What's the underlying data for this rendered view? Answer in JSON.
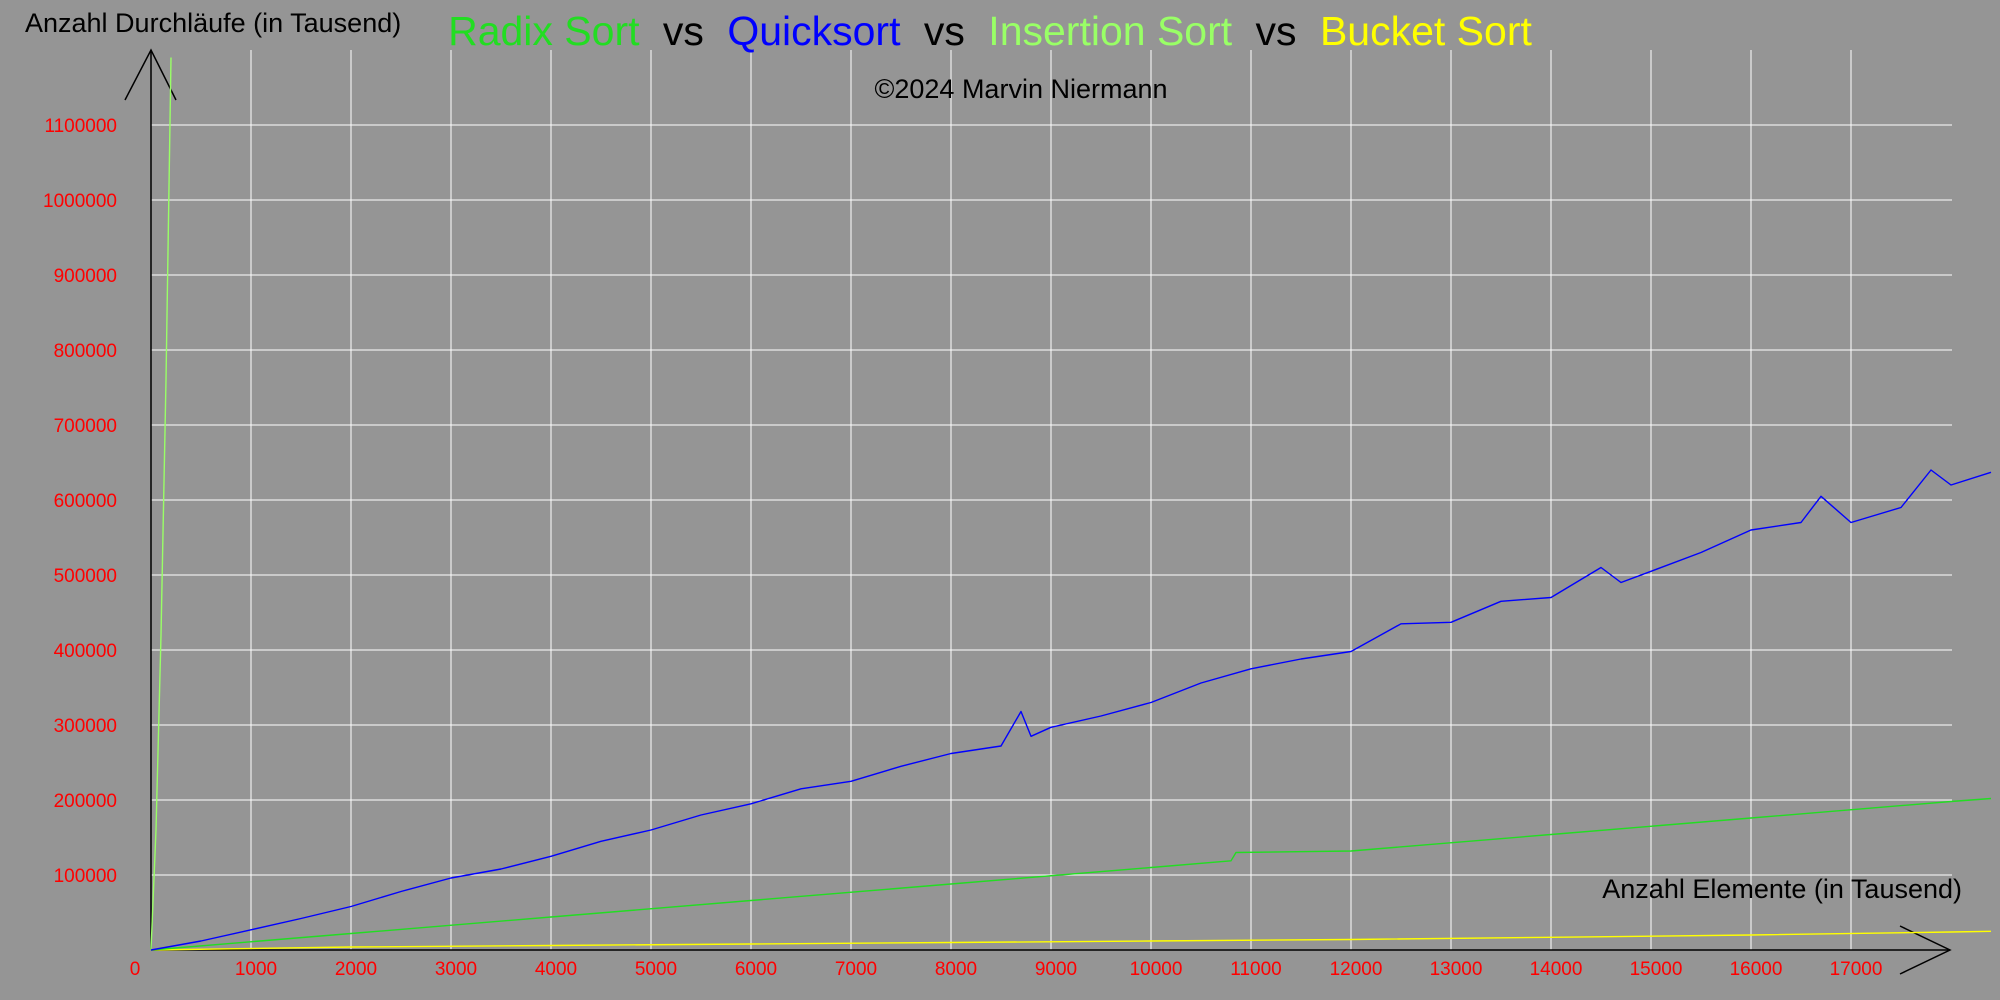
{
  "title_parts": [
    {
      "text": "Radix Sort",
      "color": "#22dd22"
    },
    {
      "text": "vs",
      "color": "#000000"
    },
    {
      "text": "Quicksort",
      "color": "#0000ff"
    },
    {
      "text": "vs",
      "color": "#000000"
    },
    {
      "text": "Insertion Sort",
      "color": "#99ff66"
    },
    {
      "text": "vs",
      "color": "#000000"
    },
    {
      "text": "Bucket Sort",
      "color": "#ffff00"
    }
  ],
  "copyright": "©2024 Marvin Niermann",
  "colors": {
    "background": "#959595",
    "grid": "#ffffff",
    "tick_labels": "#ff0000",
    "axes": "#000000"
  },
  "chart_data": {
    "type": "line",
    "xlabel": "Anzahl Elemente (in Tausend)",
    "ylabel": "Anzahl Durchläufe (in Tausend)",
    "xlim": [
      0,
      18000
    ],
    "ylim": [
      0,
      1100000
    ],
    "x_ticks": [
      "0",
      "1000",
      "2000",
      "3000",
      "4000",
      "5000",
      "6000",
      "7000",
      "8000",
      "9000",
      "10000",
      "11000",
      "12000",
      "13000",
      "14000",
      "15000",
      "16000",
      "17000"
    ],
    "y_ticks": [
      "100000",
      "200000",
      "300000",
      "400000",
      "500000",
      "600000",
      "700000",
      "800000",
      "900000",
      "1000000",
      "1100000"
    ],
    "grid": true,
    "series": [
      {
        "name": "Radix Sort",
        "color": "#22dd22",
        "x": [
          0,
          2000,
          4000,
          6000,
          8000,
          10000,
          10800,
          10850,
          12000,
          14000,
          16000,
          18000,
          18400
        ],
        "y": [
          0,
          22000,
          44000,
          66000,
          88000,
          110000,
          119000,
          130000,
          132000,
          154000,
          176000,
          198000,
          202000
        ]
      },
      {
        "name": "Quicksort",
        "color": "#0000ff",
        "x": [
          0,
          500,
          1000,
          1500,
          2000,
          2500,
          3000,
          3500,
          4000,
          4500,
          5000,
          5500,
          6000,
          6500,
          7000,
          7500,
          8000,
          8500,
          8700,
          8800,
          9000,
          9500,
          10000,
          10500,
          11000,
          11500,
          12000,
          12500,
          13000,
          13500,
          14000,
          14500,
          14700,
          15000,
          15500,
          16000,
          16500,
          16700,
          17000,
          17500,
          17800,
          18000,
          18400
        ],
        "y": [
          0,
          12000,
          27000,
          42000,
          58000,
          78000,
          96000,
          108000,
          125000,
          145000,
          160000,
          180000,
          195000,
          215000,
          225000,
          245000,
          262000,
          272000,
          318000,
          285000,
          297000,
          312000,
          330000,
          356000,
          375000,
          388000,
          398000,
          435000,
          437000,
          465000,
          470000,
          510000,
          490000,
          505000,
          530000,
          560000,
          570000,
          605000,
          570000,
          590000,
          640000,
          620000,
          637000
        ]
      },
      {
        "name": "Insertion Sort",
        "color": "#99ff66",
        "x": [
          0,
          50,
          100,
          150,
          200
        ],
        "y": [
          0,
          160000,
          420000,
          760000,
          1190000
        ]
      },
      {
        "name": "Bucket Sort",
        "color": "#ffff00",
        "x": [
          0,
          2000,
          4000,
          6000,
          8000,
          10000,
          12000,
          14000,
          16000,
          18000,
          18400
        ],
        "y": [
          0,
          4000,
          6000,
          8000,
          10000,
          12000,
          14000,
          17000,
          20000,
          24000,
          25000
        ]
      }
    ]
  }
}
